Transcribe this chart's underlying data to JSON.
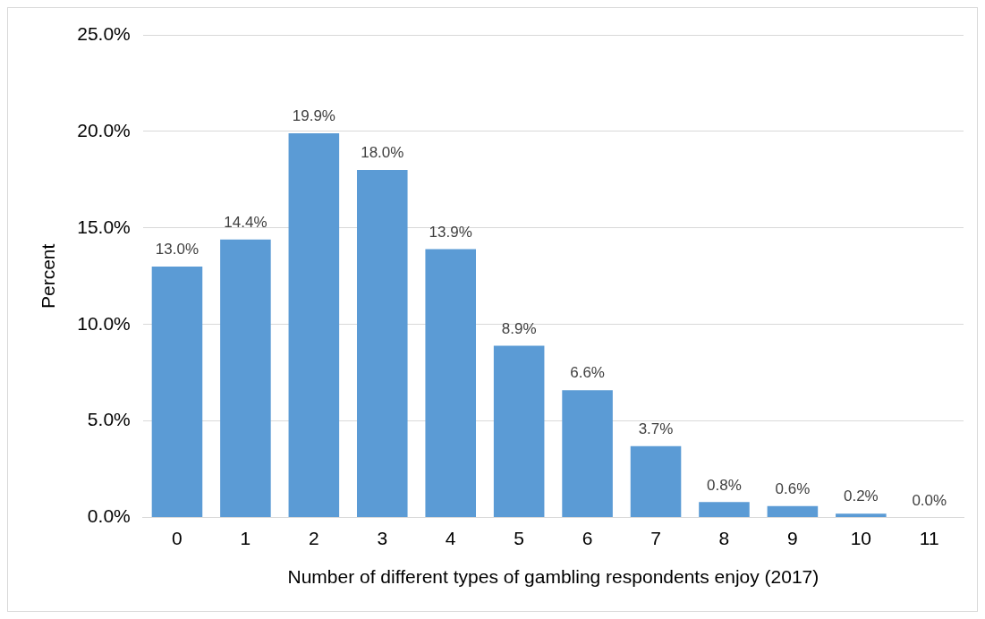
{
  "chart_data": {
    "type": "bar",
    "xlabel": "Number of different types of gambling respondents enjoy (2017)",
    "ylabel": "Percent",
    "categories": [
      "0",
      "1",
      "2",
      "3",
      "4",
      "5",
      "6",
      "7",
      "8",
      "9",
      "10",
      "11"
    ],
    "values": [
      13.0,
      14.4,
      19.9,
      18.0,
      13.9,
      8.9,
      6.6,
      3.7,
      0.8,
      0.6,
      0.2,
      0.0
    ],
    "value_labels": [
      "13.0%",
      "14.4%",
      "19.9%",
      "18.0%",
      "13.9%",
      "8.9%",
      "6.6%",
      "3.7%",
      "0.8%",
      "0.6%",
      "0.2%",
      "0.0%"
    ],
    "color": "#5b9bd5",
    "ylim": [
      0,
      25
    ],
    "yticks": [
      {
        "value": 0,
        "label": "0.0%"
      },
      {
        "value": 5,
        "label": "5.0%"
      },
      {
        "value": 10,
        "label": "10.0%"
      },
      {
        "value": 15,
        "label": "15.0%"
      },
      {
        "value": 20,
        "label": "20.0%"
      },
      {
        "value": 25,
        "label": "25.0%"
      }
    ],
    "grid": "y"
  }
}
